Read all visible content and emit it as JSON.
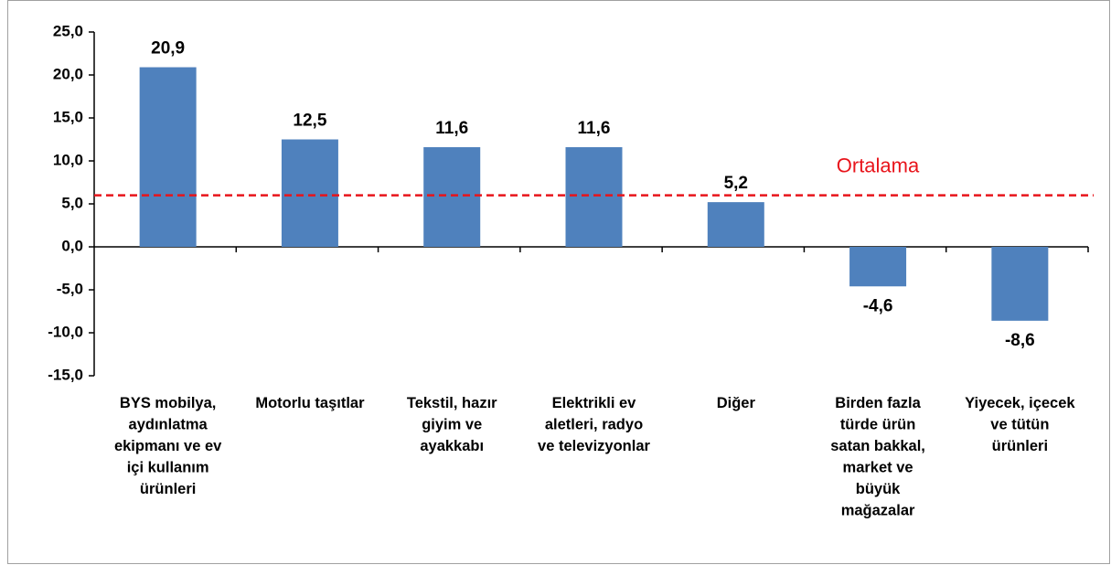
{
  "chart_data": {
    "type": "bar",
    "categories": [
      "BYS mobilya, aydınlatma ekipmanı ve ev içi kullanım ürünleri",
      "Motorlu taşıtlar",
      "Tekstil, hazır giyim ve ayakkabı",
      "Elektrikli ev aletleri, radyo ve televizyonlar",
      "Diğer",
      "Birden fazla türde ürün satan bakkal, market ve büyük mağazalar",
      "Yiyecek, içecek ve tütün ürünleri"
    ],
    "values": [
      20.9,
      12.5,
      11.6,
      11.6,
      5.2,
      -4.6,
      -8.6
    ],
    "value_labels": [
      "20,9",
      "12,5",
      "11,6",
      "11,6",
      "5,2",
      "-4,6",
      "-8,6"
    ],
    "color": "#4f81bd",
    "ylim": [
      -15,
      25
    ],
    "yticks": [
      {
        "value": -15,
        "label": "-15,0"
      },
      {
        "value": -10,
        "label": "-10,0"
      },
      {
        "value": -5,
        "label": "-5,0"
      },
      {
        "value": 0,
        "label": "0,0"
      },
      {
        "value": 5,
        "label": "5,0"
      },
      {
        "value": 10,
        "label": "10,0"
      },
      {
        "value": 15,
        "label": "15,0"
      },
      {
        "value": 20,
        "label": "20,0"
      },
      {
        "value": 25,
        "label": "25,0"
      }
    ],
    "reference_line": {
      "value": 6,
      "label": "Ortalama",
      "color": "#e8141b"
    }
  }
}
